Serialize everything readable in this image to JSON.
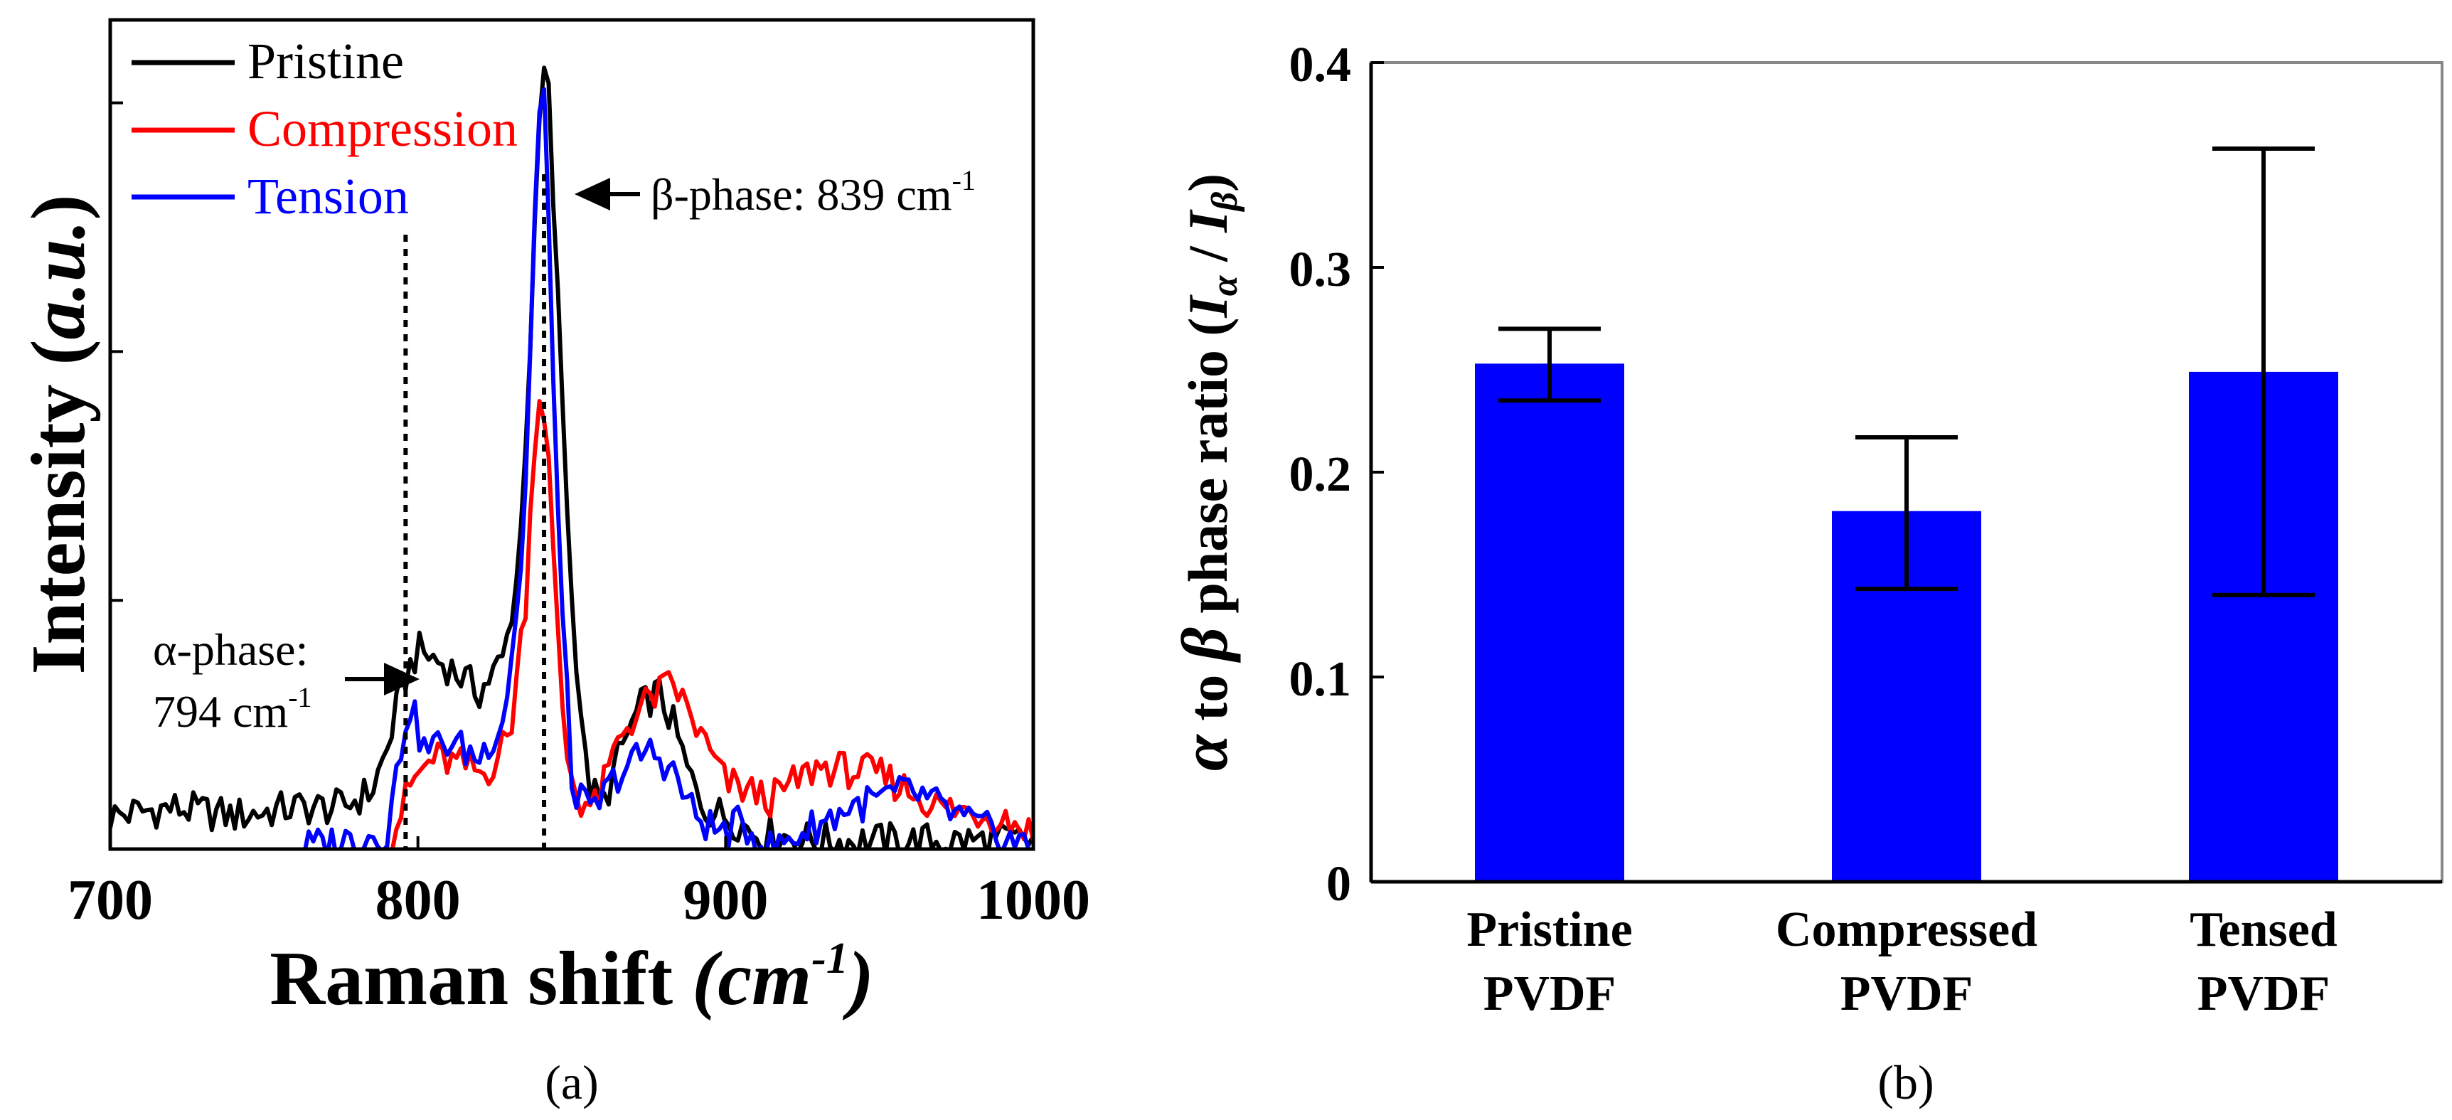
{
  "colors": {
    "pristine": "#000000",
    "compression": "#ff0000",
    "tension": "#0000ff",
    "bar": "#0000ff",
    "axis": "#000000"
  },
  "chart_data": [
    {
      "id": "a",
      "type": "line",
      "caption": "(a)",
      "xlabel": "Raman shift",
      "xlabel_unit_base": "cm",
      "xlabel_unit_exp": "-1",
      "ylabel": "Intensity",
      "ylabel_unit": "a.u.",
      "xlim": [
        700,
        1000
      ],
      "ylim": [
        0,
        1
      ],
      "xticks": [
        700,
        800,
        900,
        1000
      ],
      "yticks_values": [
        0.3,
        0.6,
        0.9
      ],
      "yticks_labeled": false,
      "legend": {
        "placement": "top-left",
        "entries": [
          "Pristine",
          "Compression",
          "Tension"
        ]
      },
      "vlines": [
        796,
        841
      ],
      "annotations": {
        "beta_text": "β-phase: 839 cm",
        "beta_sup": "-1",
        "beta_point": [
          841,
          0.95
        ],
        "alpha_line1": "α-phase:",
        "alpha_line2": "794 cm",
        "alpha_sup": "-1",
        "alpha_point": [
          797,
          0.26
        ]
      },
      "series": [
        {
          "name": "Pristine",
          "color": "#000000",
          "x": [
            700,
            720,
            740,
            760,
            775,
            785,
            790,
            795,
            800,
            810,
            820,
            828,
            833,
            837,
            840,
            842,
            845,
            850,
            855,
            860,
            866,
            872,
            878,
            883,
            888,
            893,
            900,
            910,
            930,
            960,
            1000
          ],
          "y": [
            0.04,
            0.05,
            0.04,
            0.05,
            0.05,
            0.07,
            0.12,
            0.2,
            0.24,
            0.22,
            0.19,
            0.23,
            0.35,
            0.65,
            0.92,
            0.95,
            0.7,
            0.3,
            0.08,
            0.05,
            0.12,
            0.17,
            0.19,
            0.15,
            0.09,
            0.05,
            0.04,
            0.02,
            0.01,
            0.01,
            0.01
          ]
        },
        {
          "name": "Compression",
          "color": "#ff0000",
          "x": [
            790,
            795,
            798,
            805,
            815,
            822,
            830,
            835,
            838,
            840,
            842,
            845,
            848,
            852,
            858,
            866,
            875,
            883,
            890,
            900,
            915,
            930,
            950,
            970,
            990,
            1000
          ],
          "y": [
            0.0,
            0.05,
            0.08,
            0.11,
            0.1,
            0.09,
            0.14,
            0.3,
            0.5,
            0.56,
            0.5,
            0.28,
            0.12,
            0.06,
            0.05,
            0.14,
            0.18,
            0.2,
            0.15,
            0.08,
            0.06,
            0.1,
            0.09,
            0.05,
            0.04,
            0.02
          ]
        },
        {
          "name": "Tension",
          "color": "#0000ff",
          "x": [
            760,
            790,
            794,
            797,
            802,
            810,
            820,
            828,
            834,
            837,
            839,
            841,
            843,
            846,
            850,
            856,
            865,
            875,
            882,
            890,
            898,
            905,
            915,
            940,
            960,
            980,
            1000
          ],
          "y": [
            0.0,
            0.02,
            0.11,
            0.18,
            0.12,
            0.13,
            0.11,
            0.16,
            0.35,
            0.65,
            0.88,
            0.9,
            0.7,
            0.35,
            0.08,
            0.04,
            0.09,
            0.12,
            0.1,
            0.04,
            0.02,
            0.03,
            0.0,
            0.05,
            0.07,
            0.03,
            0.0
          ]
        }
      ]
    },
    {
      "id": "b",
      "type": "bar",
      "caption": "(b)",
      "ylabel_parts": {
        "alpha": "α",
        "to": " to ",
        "beta": "β",
        "phase": " phase ratio (",
        "I": "I",
        "alpha_sub": "α",
        "slash": " / ",
        "beta_sub": "β",
        "close": ")"
      },
      "ylim": [
        0,
        0.4
      ],
      "yticks": [
        "0",
        "0.1",
        "0.2",
        "0.3",
        "0.4"
      ],
      "categories": [
        {
          "line1": "Pristine",
          "line2": "PVDF"
        },
        {
          "line1": "Compressed",
          "line2": "PVDF"
        },
        {
          "line1": "Tensed",
          "line2": "PVDF"
        }
      ],
      "values": [
        0.253,
        0.181,
        0.249
      ],
      "error_low": [
        0.235,
        0.143,
        0.14
      ],
      "error_high": [
        0.27,
        0.217,
        0.358
      ]
    }
  ]
}
